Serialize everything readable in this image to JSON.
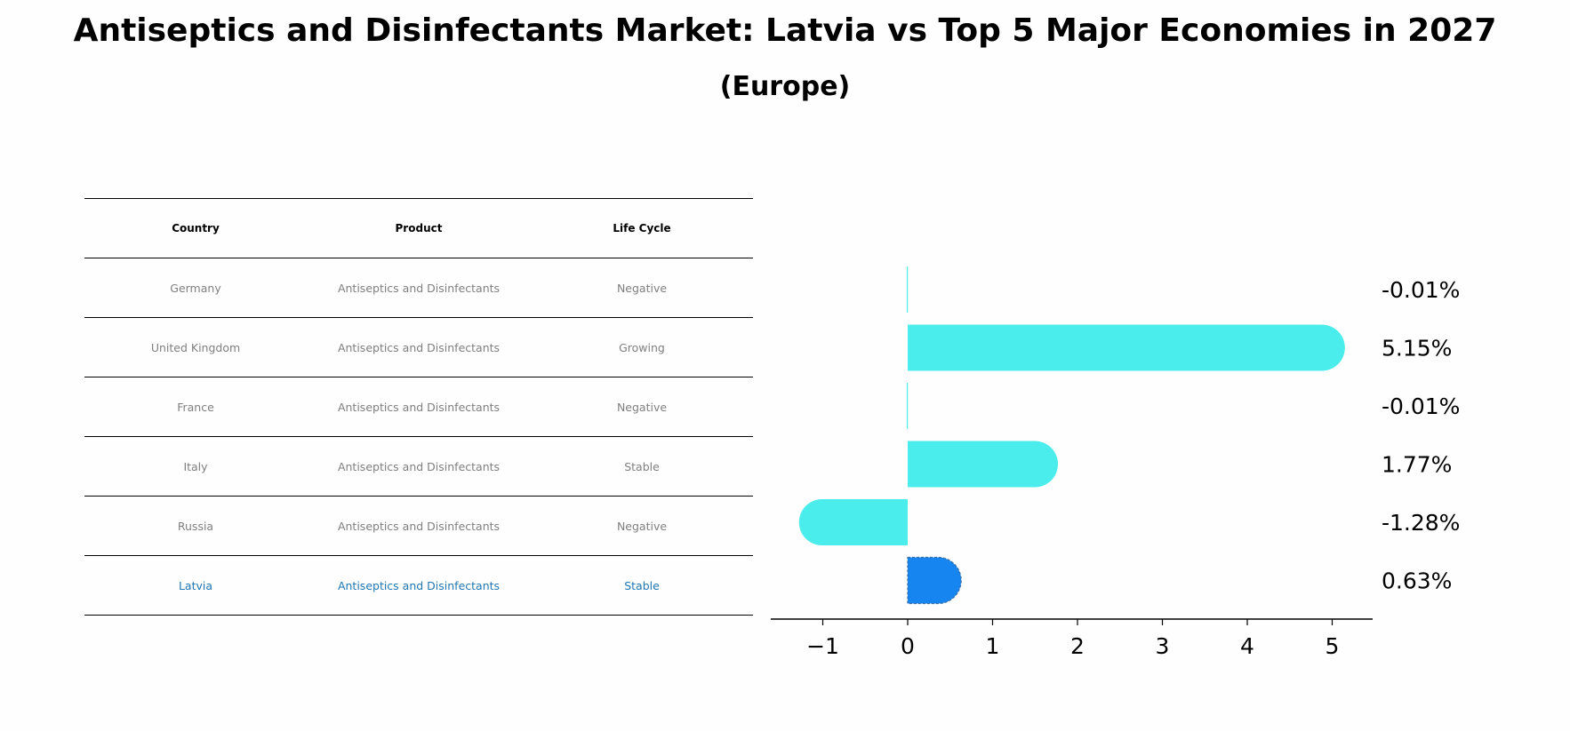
{
  "chart_data": {
    "type": "bar",
    "orientation": "horizontal",
    "title": "Antiseptics and Disinfectants Market: Latvia vs Top 5 Major Economies in 2027",
    "subtitle": "(Europe)",
    "categories": [
      "Germany",
      "United Kingdom",
      "France",
      "Italy",
      "Russia",
      "Latvia"
    ],
    "values": [
      -0.01,
      5.15,
      -0.01,
      1.77,
      -1.28,
      0.63
    ],
    "value_labels": [
      "-0.01%",
      "5.15%",
      "-0.01%",
      "1.77%",
      "-1.28%",
      "0.63%"
    ],
    "xlim": [
      -1.6,
      5.5
    ],
    "xticks": [
      -1,
      0,
      1,
      2,
      3,
      4,
      5
    ],
    "xtick_labels": [
      "−1",
      "0",
      "1",
      "2",
      "3",
      "4",
      "5"
    ],
    "colors": {
      "default": "#4aedeb",
      "highlight": "#1685f0"
    },
    "highlight_index": 5,
    "table": {
      "columns": [
        "Country",
        "Product",
        "Life Cycle"
      ],
      "rows": [
        [
          "Germany",
          "Antiseptics and Disinfectants",
          "Negative"
        ],
        [
          "United Kingdom",
          "Antiseptics and Disinfectants",
          "Growing"
        ],
        [
          "France",
          "Antiseptics and Disinfectants",
          "Negative"
        ],
        [
          "Italy",
          "Antiseptics and Disinfectants",
          "Stable"
        ],
        [
          "Russia",
          "Antiseptics and Disinfectants",
          "Negative"
        ],
        [
          "Latvia",
          "Antiseptics and Disinfectants",
          "Stable"
        ]
      ]
    }
  }
}
